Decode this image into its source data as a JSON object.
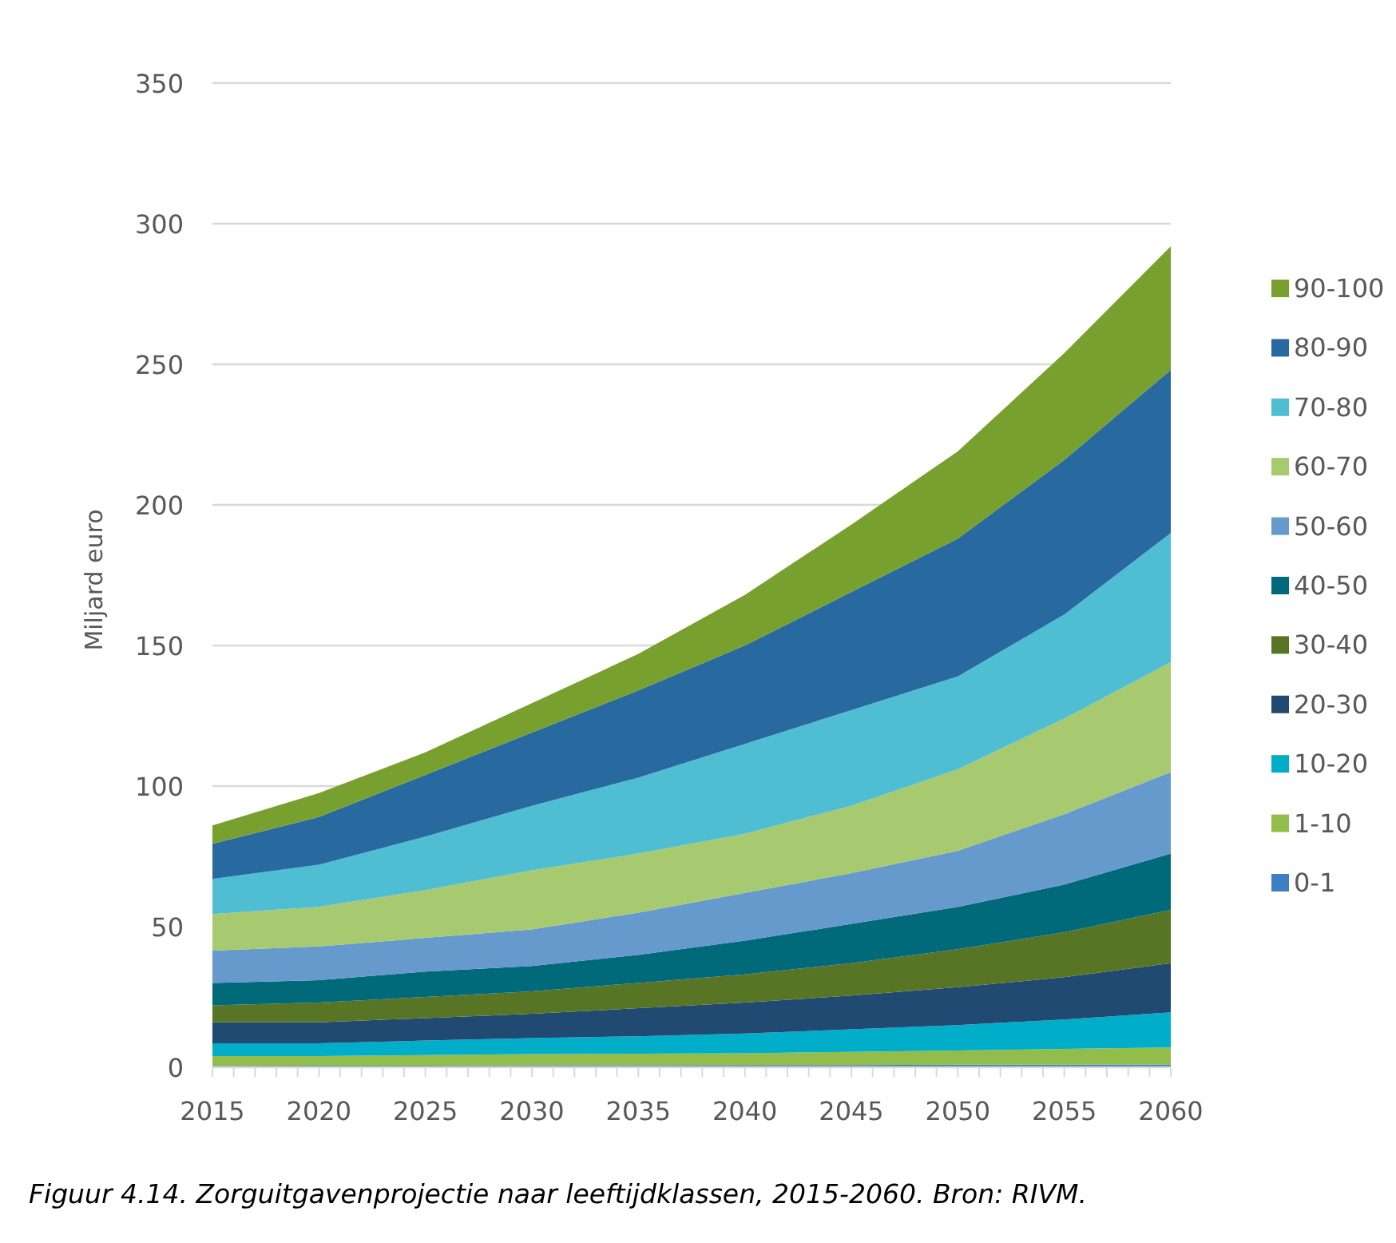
{
  "chart_data": {
    "type": "area",
    "stacked": true,
    "ylabel": "Miljard euro",
    "annotations": [
      "Figuur 4.14. Zorguitgavenprojectie naar leeftijdklassen, 2015-2060. Bron: RIVM."
    ],
    "x": [
      2015,
      2020,
      2025,
      2030,
      2035,
      2040,
      2045,
      2050,
      2055,
      2060
    ],
    "xlim": [
      2015,
      2060
    ],
    "xticks": [
      2015,
      {
        "value": 2016,
        "label": null
      },
      {
        "value": 2017,
        "label": null
      },
      {
        "value": 2018,
        "label": null
      },
      {
        "value": 2019,
        "label": null
      },
      2020,
      {
        "value": 2021,
        "label": null
      },
      {
        "value": 2022,
        "label": null
      },
      {
        "value": 2023,
        "label": null
      },
      {
        "value": 2024,
        "label": null
      },
      2025,
      {
        "value": 2026,
        "label": null
      },
      {
        "value": 2027,
        "label": null
      },
      {
        "value": 2028,
        "label": null
      },
      {
        "value": 2029,
        "label": null
      },
      2030,
      {
        "value": 2031,
        "label": null
      },
      {
        "value": 2032,
        "label": null
      },
      {
        "value": 2033,
        "label": null
      },
      {
        "value": 2034,
        "label": null
      },
      2035,
      {
        "value": 2036,
        "label": null
      },
      {
        "value": 2037,
        "label": null
      },
      {
        "value": 2038,
        "label": null
      },
      {
        "value": 2039,
        "label": null
      },
      2040,
      {
        "value": 2041,
        "label": null
      },
      {
        "value": 2042,
        "label": null
      },
      {
        "value": 2043,
        "label": null
      },
      {
        "value": 2044,
        "label": null
      },
      2045,
      {
        "value": 2046,
        "label": null
      },
      {
        "value": 2047,
        "label": null
      },
      {
        "value": 2048,
        "label": null
      },
      {
        "value": 2049,
        "label": null
      },
      2050,
      {
        "value": 2051,
        "label": null
      },
      {
        "value": 2052,
        "label": null
      },
      {
        "value": 2053,
        "label": null
      },
      {
        "value": 2054,
        "label": null
      },
      2055,
      {
        "value": 2056,
        "label": null
      },
      {
        "value": 2057,
        "label": null
      },
      {
        "value": 2058,
        "label": null
      },
      {
        "value": 2059,
        "label": null
      },
      2060
    ],
    "ylim": [
      0,
      350
    ],
    "yticks": [
      0,
      50,
      100,
      150,
      200,
      250,
      300,
      350
    ],
    "grid": "y",
    "legend": "right",
    "series": [
      {
        "name": "0-1",
        "color": "#3d7fc1",
        "values": [
          0.5,
          0.6,
          0.6,
          0.7,
          0.7,
          0.8,
          0.8,
          0.9,
          0.9,
          1
        ]
      },
      {
        "name": "1-10",
        "color": "#92bd4a",
        "values": [
          3.5,
          3.4,
          3.7,
          4.0,
          4.1,
          4.2,
          4.7,
          5.1,
          5.6,
          6
        ]
      },
      {
        "name": "10-20",
        "color": "#00aec9",
        "values": [
          4.5,
          4.5,
          5.2,
          5.7,
          6.2,
          7,
          8,
          9,
          10.5,
          12.5
        ]
      },
      {
        "name": "20-30",
        "color": "#214a72",
        "values": [
          7.5,
          7.5,
          8,
          8.6,
          10,
          11,
          12,
          13.5,
          15,
          17.5
        ]
      },
      {
        "name": "30-40",
        "color": "#577524",
        "values": [
          6,
          7,
          7.5,
          8,
          9,
          10,
          11.5,
          13.5,
          16,
          19
        ]
      },
      {
        "name": "40-50",
        "color": "#006a7a",
        "values": [
          8,
          8,
          9,
          9,
          10,
          12,
          14,
          15,
          17,
          20
        ]
      },
      {
        "name": "50-60",
        "color": "#6699cc",
        "values": [
          11.5,
          12,
          12,
          13,
          15,
          17,
          18,
          20,
          25,
          29
        ]
      },
      {
        "name": "60-70",
        "color": "#a7c96f",
        "values": [
          13,
          14,
          17,
          21,
          21,
          21,
          24,
          29,
          34,
          39
        ]
      },
      {
        "name": "70-80",
        "color": "#4fbed2",
        "values": [
          12.5,
          15,
          19,
          23,
          27,
          32,
          34,
          33,
          37,
          46
        ]
      },
      {
        "name": "80-90",
        "color": "#286aa0",
        "values": [
          12.5,
          17,
          22,
          26,
          31,
          35,
          42,
          49,
          55,
          58
        ]
      },
      {
        "name": "90-100",
        "color": "#77a02f",
        "values": [
          6.5,
          8.5,
          8,
          10.5,
          13,
          18,
          24,
          31,
          38,
          44
        ]
      }
    ]
  }
}
